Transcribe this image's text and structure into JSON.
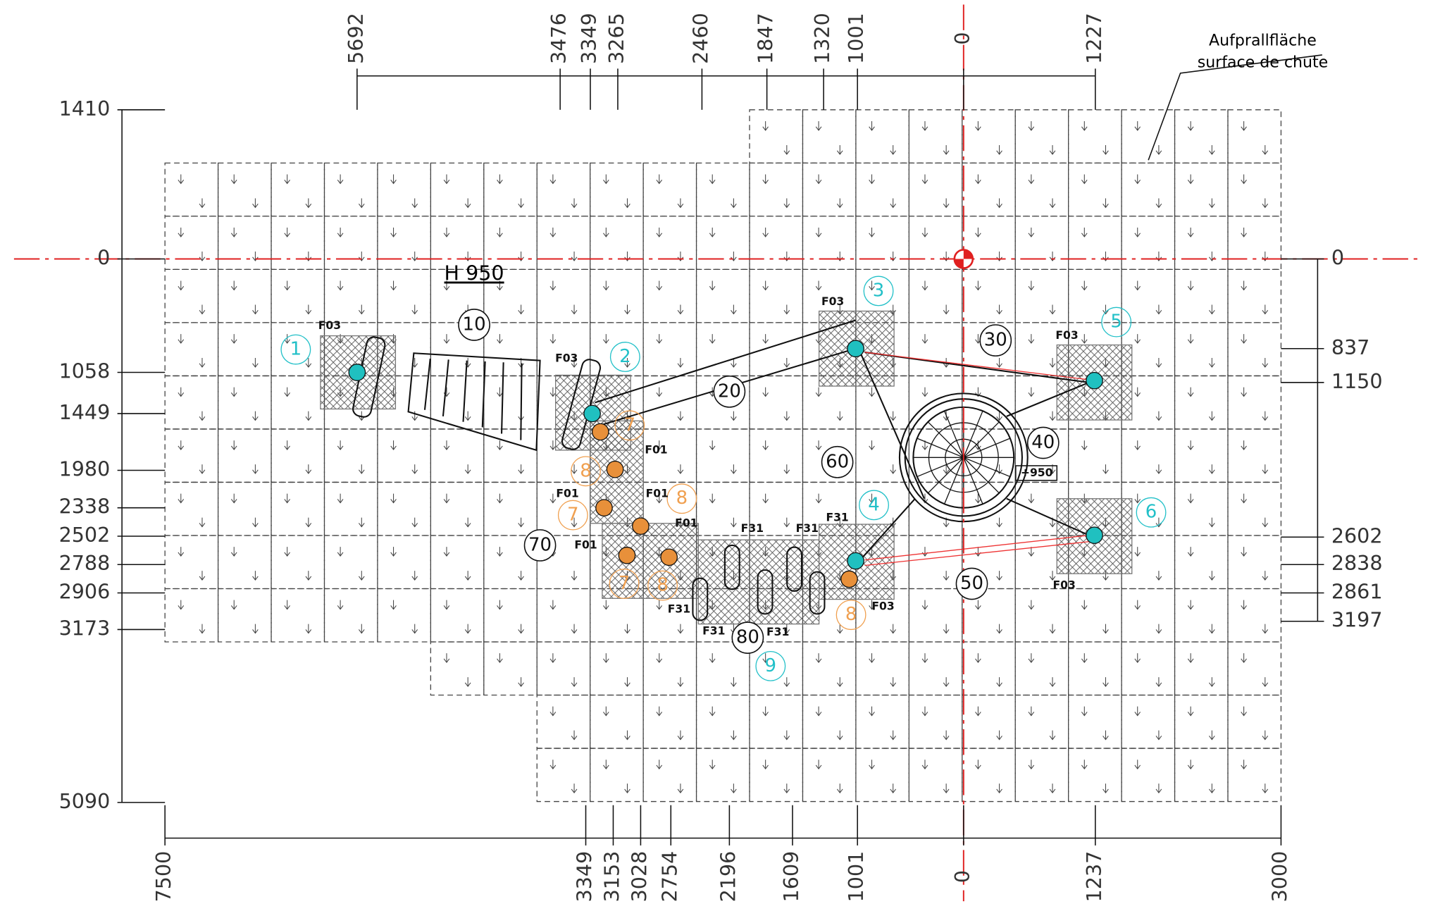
{
  "annotation": {
    "de": "Aufprallfläche",
    "fr": "surface de chute"
  },
  "height_label": "H 950",
  "level_label": "+950",
  "dimensions": {
    "top": [
      "5692",
      "3476",
      "3349",
      "3265",
      "2460",
      "1847",
      "1320",
      "1001",
      "0",
      "1227"
    ],
    "bottom": [
      "7500",
      "3349",
      "3153",
      "3028",
      "2754",
      "2196",
      "1609",
      "1001",
      "0",
      "1237",
      "3000"
    ],
    "left": [
      "1410",
      "0",
      "1058",
      "1449",
      "1980",
      "2338",
      "2502",
      "2788",
      "2906",
      "3173",
      "5090"
    ],
    "right": [
      "0",
      "837",
      "1150",
      "2602",
      "2838",
      "2861",
      "3197"
    ]
  },
  "posts": [
    "1",
    "2",
    "3",
    "4",
    "5",
    "6",
    "9"
  ],
  "foundations": [
    "7",
    "8",
    "7",
    "8",
    "7",
    "8",
    "8"
  ],
  "items": [
    "10",
    "20",
    "30",
    "40",
    "50",
    "60",
    "70",
    "80"
  ],
  "part_codes": [
    "F03",
    "F03",
    "F03",
    "F03",
    "F03",
    "F03",
    "F01",
    "F01",
    "F01",
    "F01",
    "F01",
    "F31",
    "F31",
    "F31",
    "F31",
    "F31",
    "F31"
  ]
}
